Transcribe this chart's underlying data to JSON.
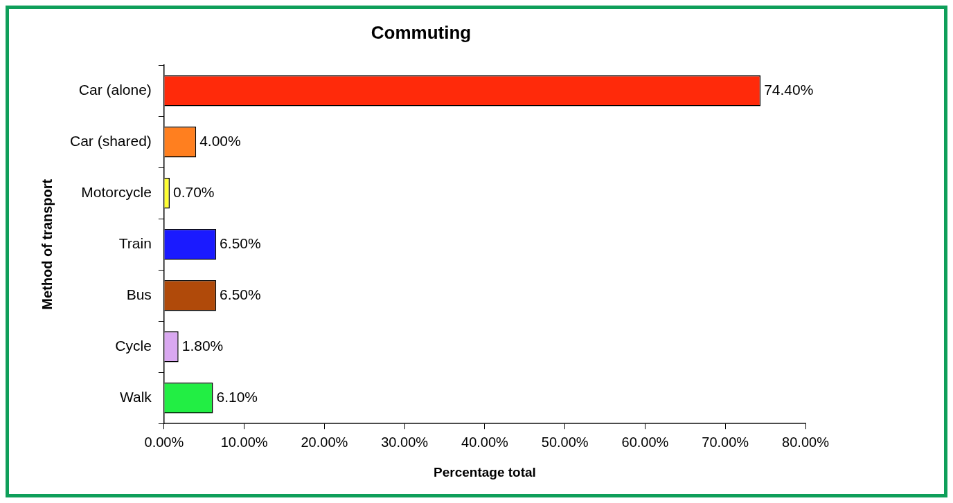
{
  "chart_data": {
    "type": "bar",
    "orientation": "horizontal",
    "title": "Commuting",
    "xlabel": "Percentage total",
    "ylabel": "Method of transport",
    "categories": [
      "Car (alone)",
      "Car (shared)",
      "Motorcycle",
      "Train",
      "Bus",
      "Cycle",
      "Walk"
    ],
    "values": [
      74.4,
      4.0,
      0.7,
      6.5,
      6.5,
      1.8,
      6.1
    ],
    "colors": [
      "#ff2a0a",
      "#ff7f1f",
      "#ffff33",
      "#1a1aff",
      "#b04a0a",
      "#d9a8f0",
      "#22ee44"
    ],
    "value_labels": [
      "74.40%",
      "4.00%",
      "0.70%",
      "6.50%",
      "6.50%",
      "1.80%",
      "6.10%"
    ],
    "xlim": [
      0,
      80
    ],
    "xticks": [
      {
        "value": 0,
        "label": "0.00%"
      },
      {
        "value": 10,
        "label": "10.00%"
      },
      {
        "value": 20,
        "label": "20.00%"
      },
      {
        "value": 30,
        "label": "30.00%"
      },
      {
        "value": 40,
        "label": "40.00%"
      },
      {
        "value": 50,
        "label": "50.00%"
      },
      {
        "value": 60,
        "label": "60.00%"
      },
      {
        "value": 70,
        "label": "70.00%"
      },
      {
        "value": 80,
        "label": "80.00%"
      }
    ],
    "grid": false,
    "legend": false
  }
}
